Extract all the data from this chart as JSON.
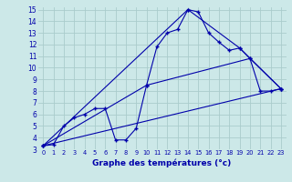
{
  "title": "Graphe des températures (°c)",
  "background_color": "#cce8e8",
  "line_color": "#0000aa",
  "grid_color": "#aacccc",
  "xlim": [
    -0.5,
    23.5
  ],
  "ylim": [
    3,
    15.2
  ],
  "xticks": [
    0,
    1,
    2,
    3,
    4,
    5,
    6,
    7,
    8,
    9,
    10,
    11,
    12,
    13,
    14,
    15,
    16,
    17,
    18,
    19,
    20,
    21,
    22,
    23
  ],
  "yticks": [
    3,
    4,
    5,
    6,
    7,
    8,
    9,
    10,
    11,
    12,
    13,
    14,
    15
  ],
  "temp_curve": {
    "x": [
      0,
      1,
      2,
      3,
      4,
      5,
      6,
      7,
      8,
      9,
      10,
      11,
      12,
      13,
      14,
      15,
      16,
      17,
      18,
      19,
      20,
      21,
      22,
      23
    ],
    "y": [
      3.3,
      3.4,
      5.0,
      5.7,
      6.0,
      6.5,
      6.5,
      3.8,
      3.8,
      4.8,
      8.5,
      11.8,
      13.0,
      13.3,
      15.0,
      14.8,
      13.0,
      12.2,
      11.5,
      11.7,
      10.8,
      8.0,
      8.0,
      8.2
    ]
  },
  "line_straight": {
    "x": [
      0,
      23
    ],
    "y": [
      3.3,
      8.2
    ]
  },
  "line_peak_triangle": {
    "x": [
      0,
      14,
      19,
      23
    ],
    "y": [
      3.3,
      15.0,
      11.7,
      8.2
    ]
  },
  "line_mid": {
    "x": [
      0,
      10,
      20,
      23
    ],
    "y": [
      3.3,
      8.5,
      10.8,
      8.2
    ]
  }
}
